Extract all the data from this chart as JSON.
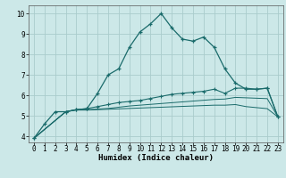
{
  "xlabel": "Humidex (Indice chaleur)",
  "xlim": [
    -0.5,
    23.5
  ],
  "ylim": [
    3.7,
    10.4
  ],
  "bg_color": "#cce8e8",
  "grid_color": "#aacccc",
  "line_color": "#1a6b6b",
  "line1_x": [
    0,
    1,
    2,
    3,
    4,
    5,
    6,
    7,
    8,
    9,
    10,
    11,
    12,
    13,
    14,
    15,
    16,
    17,
    18,
    19,
    20,
    21,
    22,
    23
  ],
  "line1_y": [
    3.9,
    4.6,
    5.2,
    5.2,
    5.3,
    5.35,
    6.1,
    7.0,
    7.3,
    8.35,
    9.1,
    9.5,
    10.0,
    9.3,
    8.75,
    8.65,
    8.85,
    8.35,
    7.3,
    6.6,
    6.3,
    6.3,
    6.35,
    4.95
  ],
  "line2_x": [
    0,
    3,
    4,
    5,
    6,
    7,
    8,
    9,
    10,
    11,
    12,
    13,
    14,
    15,
    16,
    17,
    18,
    19,
    20,
    21,
    22,
    23
  ],
  "line2_y": [
    3.9,
    5.2,
    5.3,
    5.35,
    5.45,
    5.55,
    5.65,
    5.7,
    5.75,
    5.85,
    5.95,
    6.05,
    6.1,
    6.15,
    6.2,
    6.3,
    6.1,
    6.35,
    6.35,
    6.3,
    6.35,
    4.95
  ],
  "line3_x": [
    0,
    3,
    4,
    5,
    6,
    7,
    8,
    9,
    10,
    11,
    12,
    13,
    14,
    15,
    16,
    17,
    18,
    19,
    20,
    21,
    22,
    23
  ],
  "line3_y": [
    3.9,
    5.2,
    5.3,
    5.3,
    5.33,
    5.36,
    5.42,
    5.48,
    5.52,
    5.56,
    5.6,
    5.64,
    5.68,
    5.72,
    5.76,
    5.8,
    5.82,
    5.9,
    5.88,
    5.86,
    5.84,
    4.95
  ],
  "line4_x": [
    0,
    3,
    4,
    5,
    6,
    7,
    8,
    9,
    10,
    11,
    12,
    13,
    14,
    15,
    16,
    17,
    18,
    19,
    20,
    21,
    22,
    23
  ],
  "line4_y": [
    3.9,
    5.2,
    5.28,
    5.28,
    5.3,
    5.32,
    5.34,
    5.36,
    5.38,
    5.4,
    5.42,
    5.44,
    5.46,
    5.48,
    5.5,
    5.52,
    5.52,
    5.55,
    5.45,
    5.4,
    5.35,
    4.95
  ],
  "xticks": [
    0,
    1,
    2,
    3,
    4,
    5,
    6,
    7,
    8,
    9,
    10,
    11,
    12,
    13,
    14,
    15,
    16,
    17,
    18,
    19,
    20,
    21,
    22,
    23
  ],
  "yticks": [
    4,
    5,
    6,
    7,
    8,
    9,
    10
  ],
  "xlabel_fontsize": 6.5,
  "tick_fontsize": 5.5
}
